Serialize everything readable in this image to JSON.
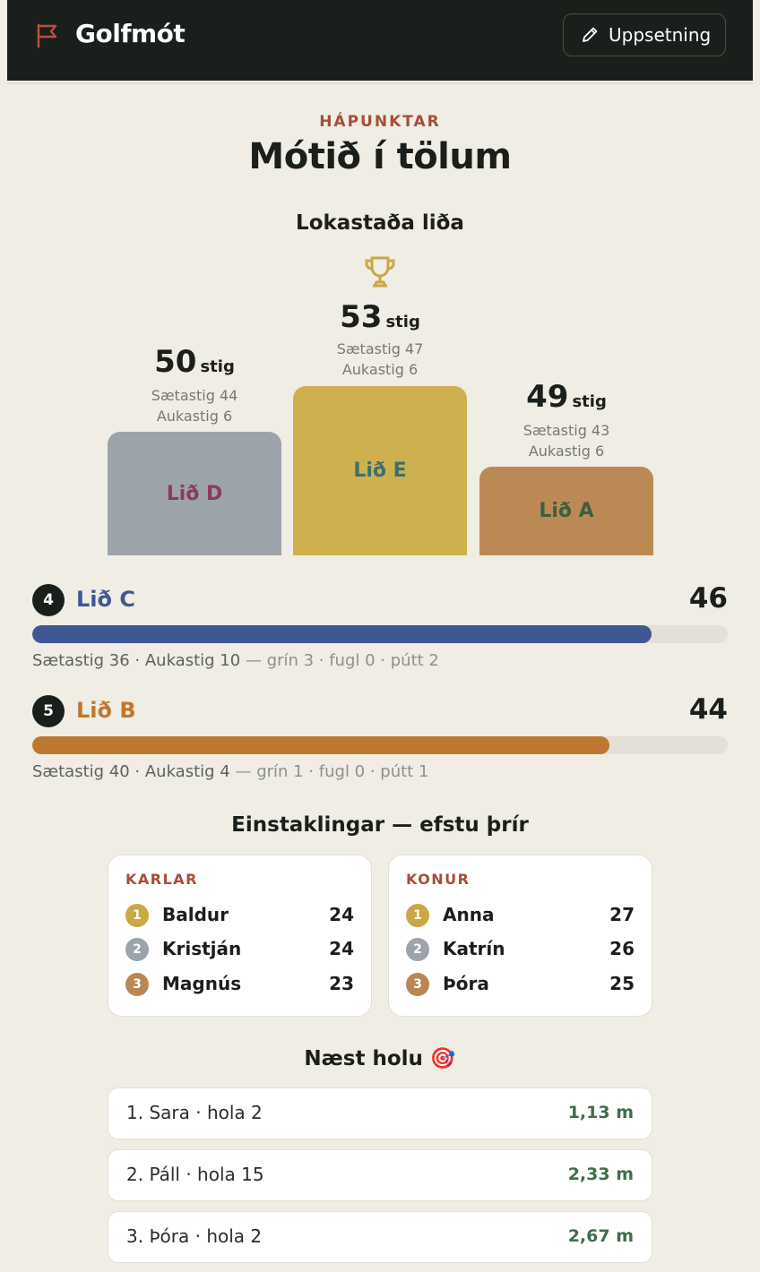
{
  "header": {
    "brand": "Golfmót",
    "setup_label": "Uppsetning"
  },
  "hero": {
    "eyebrow": "HÁPUNKTAR",
    "title": "Mótið í tölum"
  },
  "podium": {
    "title": "Lokastaða liða",
    "unit": "stig",
    "places": [
      {
        "team": "Lið D",
        "points": "50",
        "saetastig": "Sætastig 44",
        "aukastig": "Aukastig 6",
        "block_color": "#9da3aa",
        "text_color": "#8b3a62"
      },
      {
        "team": "Lið E",
        "points": "53",
        "saetastig": "Sætastig 47",
        "aukastig": "Aukastig 6",
        "block_color": "#cfb04f",
        "text_color": "#3f6e6a"
      },
      {
        "team": "Lið A",
        "points": "49",
        "saetastig": "Sætastig 43",
        "aukastig": "Aukastig 6",
        "block_color": "#bb8a54",
        "text_color": "#3e5e42"
      }
    ]
  },
  "ranking": [
    {
      "rank": "4",
      "team": "Lið C",
      "score": "46",
      "progress": 0.89,
      "color": "#3f5894",
      "detail": "Sætastig 36 · Aukastig 10",
      "extra": " — grín 3 · fugl 0 · pútt 2"
    },
    {
      "rank": "5",
      "team": "Lið B",
      "score": "44",
      "progress": 0.83,
      "color": "#bd7830",
      "detail": "Sætastig 40 · Aukastig 4",
      "extra": " — grín 1 · fugl 0 · pútt 1"
    }
  ],
  "individuals": {
    "title": "Einstaklingar — efstu þrír",
    "groups": [
      {
        "label": "KARLAR",
        "players": [
          {
            "place": "1",
            "name": "Baldur",
            "score": "24"
          },
          {
            "place": "2",
            "name": "Kristján",
            "score": "24"
          },
          {
            "place": "3",
            "name": "Magnús",
            "score": "23"
          }
        ]
      },
      {
        "label": "KONUR",
        "players": [
          {
            "place": "1",
            "name": "Anna",
            "score": "27"
          },
          {
            "place": "2",
            "name": "Katrín",
            "score": "26"
          },
          {
            "place": "3",
            "name": "Þóra",
            "score": "25"
          }
        ]
      }
    ],
    "medal_colors": [
      "#c9a845",
      "#9da3aa",
      "#b98654"
    ]
  },
  "nearest": {
    "title": "Næst holu",
    "emoji": "🎯",
    "entries": [
      {
        "label": "1. Sara · hola 2",
        "distance": "1,13 m"
      },
      {
        "label": "2. Páll · hola 15",
        "distance": "2,33 m"
      },
      {
        "label": "3. Þóra · hola 2",
        "distance": "2,67 m"
      }
    ]
  }
}
